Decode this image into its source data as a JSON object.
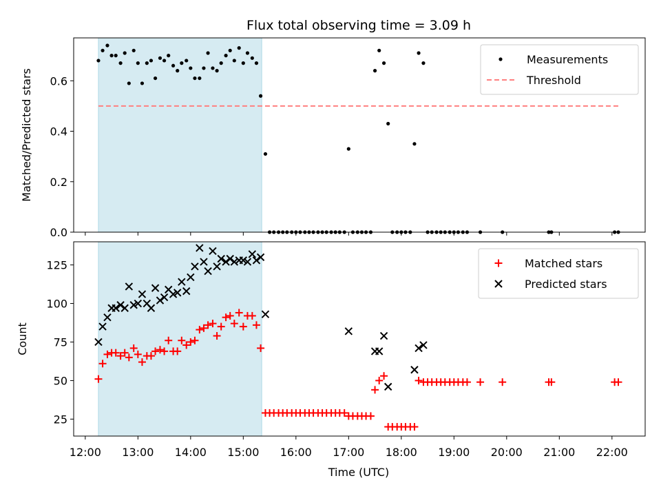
{
  "chart_data": {
    "title": "Flux total observing time = 3.09 h",
    "xlabel": "Time (UTC)",
    "x_ticks": [
      "12:00",
      "13:00",
      "14:00",
      "15:00",
      "16:00",
      "17:00",
      "18:00",
      "19:00",
      "20:00",
      "21:00",
      "22:00"
    ],
    "x_tick_hours": [
      12,
      13,
      14,
      15,
      16,
      17,
      18,
      19,
      20,
      21,
      22
    ],
    "xlim": [
      11.78,
      22.63
    ],
    "highlight_span": [
      12.25,
      15.35
    ],
    "colors": {
      "span": "#add8e6",
      "threshold": "#ff7f7f",
      "measurement": "#000000",
      "matched": "#ff0000",
      "predicted": "#000000"
    },
    "panels": [
      {
        "type": "scatter",
        "ylabel": "Matched/Predicted stars",
        "ylim": [
          0,
          0.77
        ],
        "y_ticks": [
          0.0,
          0.2,
          0.4,
          0.6
        ],
        "y_tick_labels": [
          "0.0",
          "0.2",
          "0.4",
          "0.6"
        ],
        "legend_position": "top-right",
        "threshold": {
          "name": "Threshold",
          "value": 0.5,
          "x_range": [
            12.25,
            22.15
          ]
        },
        "series": [
          {
            "name": "Measurements",
            "marker": "dot",
            "x": [
              12.25,
              12.33,
              12.42,
              12.5,
              12.58,
              12.67,
              12.75,
              12.83,
              12.92,
              13.0,
              13.08,
              13.17,
              13.25,
              13.33,
              13.42,
              13.5,
              13.58,
              13.67,
              13.75,
              13.83,
              13.92,
              14.0,
              14.08,
              14.17,
              14.25,
              14.33,
              14.42,
              14.5,
              14.58,
              14.67,
              14.75,
              14.83,
              14.92,
              15.0,
              15.08,
              15.17,
              15.25,
              15.33,
              15.42,
              15.5,
              15.58,
              15.67,
              15.75,
              15.83,
              15.92,
              16.0,
              16.08,
              16.17,
              16.25,
              16.33,
              16.42,
              16.5,
              16.58,
              16.67,
              16.75,
              16.83,
              16.92,
              17.0,
              17.08,
              17.17,
              17.25,
              17.33,
              17.42,
              17.5,
              17.58,
              17.67,
              17.75,
              17.83,
              17.92,
              18.0,
              18.08,
              18.17,
              18.25,
              18.33,
              18.42,
              18.5,
              18.58,
              18.67,
              18.75,
              18.83,
              18.92,
              19.0,
              19.08,
              19.17,
              19.25,
              19.5,
              19.92,
              20.8,
              20.85,
              22.05,
              22.12
            ],
            "y": [
              0.68,
              0.72,
              0.74,
              0.7,
              0.7,
              0.67,
              0.71,
              0.59,
              0.72,
              0.67,
              0.59,
              0.67,
              0.68,
              0.61,
              0.69,
              0.68,
              0.7,
              0.66,
              0.64,
              0.67,
              0.68,
              0.65,
              0.61,
              0.61,
              0.65,
              0.71,
              0.65,
              0.64,
              0.67,
              0.7,
              0.72,
              0.68,
              0.73,
              0.67,
              0.71,
              0.69,
              0.67,
              0.54,
              0.31,
              0.0,
              0.0,
              0.0,
              0.0,
              0.0,
              0.0,
              0.0,
              0.0,
              0.0,
              0.0,
              0.0,
              0.0,
              0.0,
              0.0,
              0.0,
              0.0,
              0.0,
              0.0,
              0.33,
              0.0,
              0.0,
              0.0,
              0.0,
              0.0,
              0.64,
              0.72,
              0.67,
              0.43,
              0.0,
              0.0,
              0.0,
              0.0,
              0.0,
              0.35,
              0.71,
              0.67,
              0.0,
              0.0,
              0.0,
              0.0,
              0.0,
              0.0,
              0.0,
              0.0,
              0.0,
              0.0,
              0.0,
              0.0,
              0.0,
              0.0,
              0.0,
              0.0
            ]
          }
        ]
      },
      {
        "type": "scatter",
        "ylabel": "Count",
        "ylim": [
          14,
          140
        ],
        "y_ticks": [
          25,
          50,
          75,
          100,
          125
        ],
        "y_tick_labels": [
          "25",
          "50",
          "75",
          "100",
          "125"
        ],
        "legend_position": "top-right",
        "series": [
          {
            "name": "Matched stars",
            "marker": "plus",
            "x": [
              12.25,
              12.33,
              12.42,
              12.5,
              12.58,
              12.67,
              12.75,
              12.83,
              12.92,
              13.0,
              13.08,
              13.17,
              13.25,
              13.33,
              13.42,
              13.5,
              13.58,
              13.67,
              13.75,
              13.83,
              13.92,
              14.0,
              14.08,
              14.17,
              14.25,
              14.33,
              14.42,
              14.5,
              14.58,
              14.67,
              14.75,
              14.83,
              14.92,
              15.0,
              15.08,
              15.17,
              15.25,
              15.33,
              15.42,
              15.5,
              15.58,
              15.67,
              15.75,
              15.83,
              15.92,
              16.0,
              16.08,
              16.17,
              16.25,
              16.33,
              16.42,
              16.5,
              16.58,
              16.67,
              16.75,
              16.83,
              16.92,
              17.0,
              17.08,
              17.17,
              17.25,
              17.33,
              17.42,
              17.5,
              17.58,
              17.67,
              17.75,
              17.83,
              17.92,
              18.0,
              18.08,
              18.17,
              18.25,
              18.33,
              18.42,
              18.5,
              18.58,
              18.67,
              18.75,
              18.83,
              18.92,
              19.0,
              19.08,
              19.17,
              19.25,
              19.5,
              19.92,
              20.8,
              20.85,
              22.05,
              22.12
            ],
            "y": [
              51,
              61,
              67,
              68,
              68,
              66,
              68,
              65,
              71,
              67,
              62,
              66,
              66,
              69,
              70,
              69,
              76,
              69,
              69,
              76,
              73,
              75,
              76,
              83,
              84,
              86,
              87,
              79,
              85,
              91,
              92,
              87,
              94,
              85,
              92,
              92,
              86,
              71,
              29,
              29,
              29,
              29,
              29,
              29,
              29,
              29,
              29,
              29,
              29,
              29,
              29,
              29,
              29,
              29,
              29,
              29,
              29,
              27,
              27,
              27,
              27,
              27,
              27,
              44,
              50,
              53,
              20,
              20,
              20,
              20,
              20,
              20,
              20,
              50,
              49,
              49,
              49,
              49,
              49,
              49,
              49,
              49,
              49,
              49,
              49,
              49,
              49,
              49,
              49,
              49,
              49
            ]
          },
          {
            "name": "Predicted stars",
            "marker": "x",
            "x": [
              12.25,
              12.33,
              12.42,
              12.5,
              12.58,
              12.67,
              12.75,
              12.83,
              12.92,
              13.0,
              13.08,
              13.17,
              13.25,
              13.33,
              13.42,
              13.5,
              13.58,
              13.67,
              13.75,
              13.83,
              13.92,
              14.0,
              14.08,
              14.17,
              14.25,
              14.33,
              14.42,
              14.5,
              14.58,
              14.67,
              14.75,
              14.83,
              14.92,
              15.0,
              15.08,
              15.17,
              15.25,
              15.33,
              15.42,
              17.0,
              17.5,
              17.58,
              17.67,
              17.75,
              18.25,
              18.33,
              18.42
            ],
            "y": [
              75,
              85,
              91,
              97,
              97,
              99,
              97,
              111,
              99,
              100,
              106,
              100,
              97,
              110,
              102,
              104,
              109,
              106,
              107,
              114,
              108,
              117,
              124,
              136,
              127,
              121,
              134,
              124,
              129,
              127,
              129,
              127,
              128,
              128,
              127,
              132,
              128,
              130,
              93,
              82,
              69,
              69,
              79,
              46,
              57,
              71,
              73
            ]
          }
        ]
      }
    ]
  }
}
